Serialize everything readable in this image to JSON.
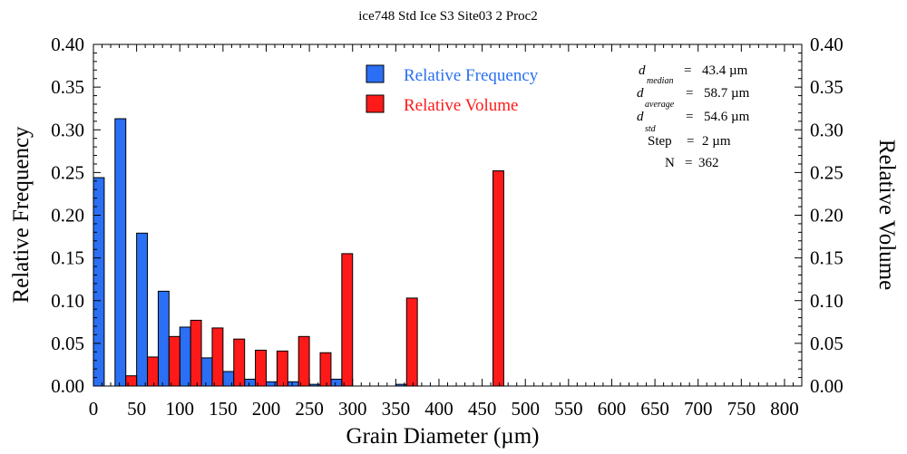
{
  "chart_data": {
    "type": "bar",
    "title": "ice748 Std Ice S3 Site03 2 Proc2",
    "xlabel": "Grain Diameter (µm)",
    "ylabel_left": "Relative Frequency",
    "ylabel_right": "Relative Volume",
    "xlim": [
      0,
      820
    ],
    "ylim": [
      0,
      0.4
    ],
    "x_ticks": [
      0,
      50,
      100,
      150,
      200,
      250,
      300,
      350,
      400,
      450,
      500,
      550,
      600,
      650,
      700,
      750,
      800
    ],
    "y_ticks": [
      0.0,
      0.05,
      0.1,
      0.15,
      0.2,
      0.25,
      0.3,
      0.35,
      0.4
    ],
    "y_tick_labels": [
      "0.00",
      "0.05",
      "0.10",
      "0.15",
      "0.20",
      "0.25",
      "0.30",
      "0.35",
      "0.40"
    ],
    "bin_width": 25,
    "bins": [
      0,
      25,
      50,
      75,
      100,
      125,
      150,
      175,
      200,
      225,
      250,
      275,
      300,
      325,
      350,
      375,
      400,
      425,
      450,
      475
    ],
    "series": [
      {
        "name": "Relative Frequency",
        "color": "#2a6ff4",
        "values": [
          0.244,
          0.313,
          0.179,
          0.111,
          0.069,
          0.033,
          0.017,
          0.008,
          0.005,
          0.005,
          0.002,
          0.008,
          0,
          0,
          0.002,
          0,
          0,
          0,
          0,
          0
        ]
      },
      {
        "name": "Relative Volume",
        "color": "#ff1a1a",
        "values": [
          0,
          0.012,
          0.034,
          0.058,
          0.077,
          0.068,
          0.055,
          0.042,
          0.041,
          0.058,
          0.039,
          0.155,
          0,
          0,
          0.103,
          0,
          0,
          0,
          0.252,
          0
        ]
      }
    ],
    "legend": [
      "Relative Frequency",
      "Relative Volume"
    ],
    "legend_position": "top-center",
    "stats": {
      "symbol": "d",
      "median_sub": "median",
      "median_value": "43.4 µm",
      "average_sub": "average",
      "average_value": "58.7 µm",
      "std_sub": "std",
      "std_value": "54.6 µm",
      "step_label": "Step",
      "step_value": "2 µm",
      "n_label": "N",
      "n_value": "362",
      "equals": "="
    }
  }
}
